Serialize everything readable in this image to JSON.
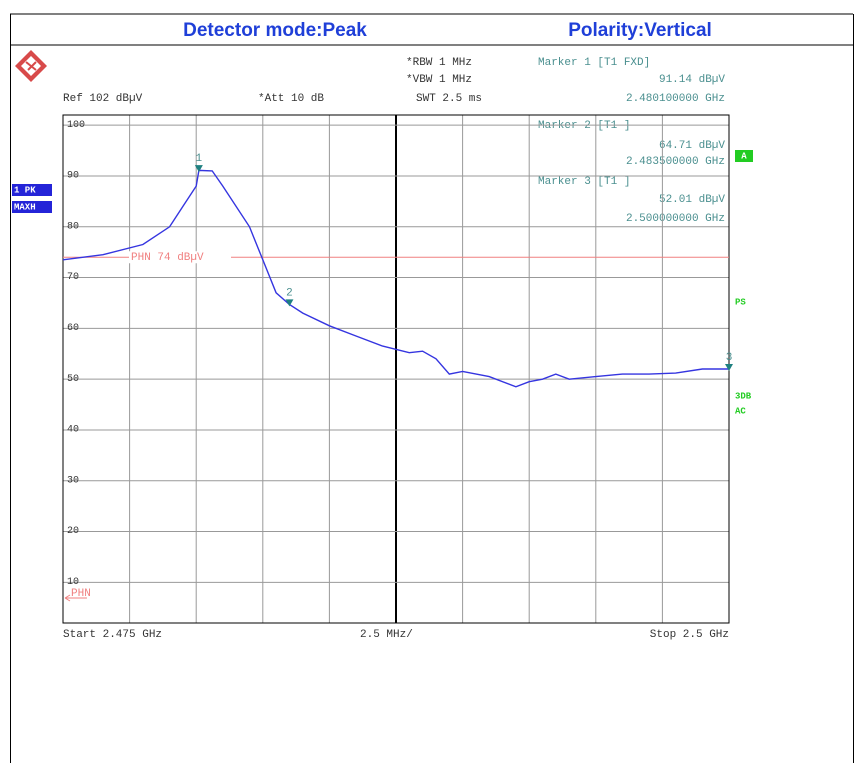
{
  "header": {
    "detector": "Detector mode:Peak",
    "polarity": "Polarity:Vertical"
  },
  "chart_data": {
    "type": "line",
    "settings": [
      "Ref 102 dBµV",
      "*Att 10 dB",
      "*RBW 1 MHz",
      "*VBW 1 MHz",
      "SWT 2.5 ms"
    ],
    "readouts": [
      [
        "Marker 1 [T1 FXD]",
        "91.14 dBµV",
        "2.480100000 GHz"
      ],
      [
        "Marker 2 [T1 ]",
        "64.71 dBµV",
        "2.483500000 GHz"
      ],
      [
        "Marker 3 [T1 ]",
        "52.01 dBµV",
        "2.500000000 GHz"
      ]
    ],
    "badges": {
      "trace": "1 PK",
      "mode": "MAXH",
      "screen": "A",
      "ps": "PS",
      "db": "3DB",
      "ac": "AC"
    },
    "footer": {
      "start": "Start 2.475 GHz",
      "span": "2.5 MHz/",
      "stop": "Stop 2.5 GHz"
    },
    "display_line": {
      "label": "PHN 74 dBµV",
      "value": 74,
      "short": "PHN",
      "color": "#f08080"
    },
    "markers": [
      {
        "label": "1",
        "x": 2.4801,
        "value": 91.14
      },
      {
        "label": "2",
        "x": 2.4835,
        "value": 64.71
      },
      {
        "label": "3",
        "x": 2.5,
        "value": 52.01
      }
    ],
    "x": [
      2.475,
      2.4765,
      2.478,
      2.479,
      2.4795,
      2.48,
      2.4801,
      2.4806,
      2.481,
      2.482,
      2.4825,
      2.483,
      2.4835,
      2.484,
      2.485,
      2.486,
      2.487,
      2.488,
      2.4885,
      2.489,
      2.4895,
      2.49,
      2.491,
      2.492,
      2.4925,
      2.493,
      2.4935,
      2.494,
      2.495,
      2.496,
      2.497,
      2.498,
      2.499,
      2.5
    ],
    "series": [
      {
        "name": "1 PK",
        "color": "#3535e0",
        "values": [
          73.5,
          74.5,
          76.5,
          80,
          84,
          88,
          91.1,
          91,
          88,
          80,
          73.5,
          67,
          64.7,
          63,
          60.5,
          58.5,
          56.5,
          55.2,
          55.5,
          54,
          51,
          51.5,
          50.5,
          48.5,
          49.5,
          50,
          51,
          50,
          50.5,
          51,
          51,
          51.2,
          52,
          52
        ]
      }
    ],
    "xlim": [
      2.475,
      2.5
    ],
    "xticks": [
      2.475,
      2.4775,
      2.48,
      2.4825,
      2.485,
      2.4875,
      2.49,
      2.4925,
      2.495,
      2.4975,
      2.5
    ],
    "ylim": [
      2,
      102
    ],
    "yticks": [
      10,
      20,
      30,
      40,
      50,
      60,
      70,
      80,
      90,
      100
    ],
    "grid": true
  }
}
